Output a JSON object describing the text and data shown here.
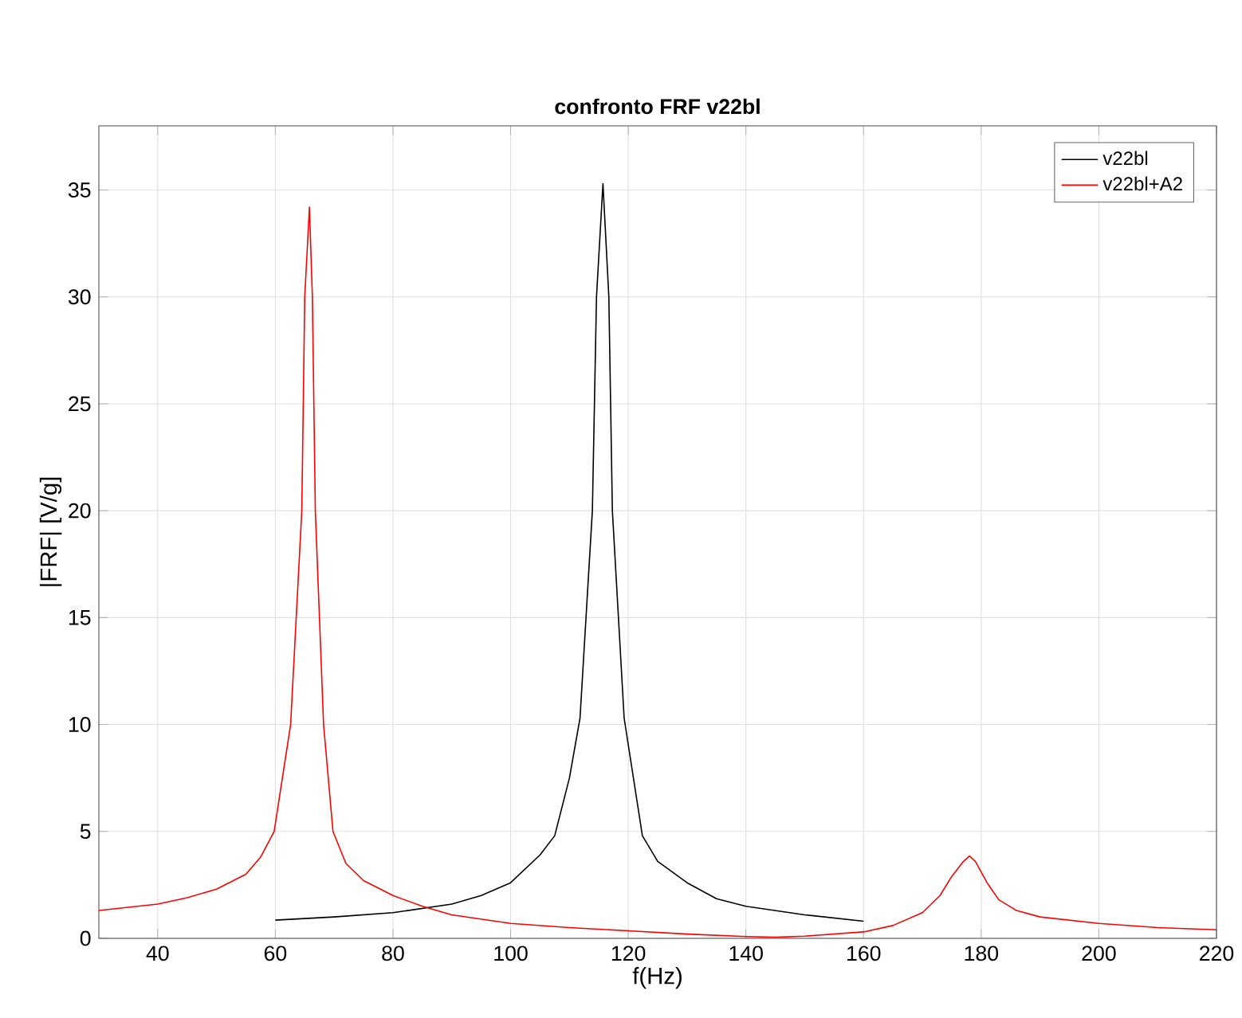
{
  "chart_data": {
    "type": "line",
    "title": "confronto FRF v22bl",
    "xlabel": "f(Hz)",
    "ylabel": "|FRF| [V/g]",
    "xlim": [
      30,
      220
    ],
    "xticks": [
      40,
      60,
      80,
      100,
      120,
      140,
      160,
      180,
      200,
      220
    ],
    "ylim": [
      0,
      38
    ],
    "yticks": [
      0,
      5,
      10,
      15,
      20,
      25,
      30,
      35
    ],
    "grid": true,
    "legend": "top right",
    "marker": "none",
    "line_style": "solid",
    "series": [
      {
        "name": "v22bl",
        "color": "#000000",
        "x": [
          60,
          70,
          80,
          90,
          95,
          100,
          105,
          107.5,
          110,
          111.8,
          113.9,
          114.6,
          115.7,
          116.7,
          117.3,
          119.3,
          122.4,
          125,
          130,
          135,
          140,
          150,
          160
        ],
        "values": [
          0.85,
          1.0,
          1.2,
          1.6,
          2.0,
          2.6,
          3.9,
          4.8,
          7.5,
          10.3,
          20,
          30,
          35.3,
          30,
          20,
          10.3,
          4.8,
          3.6,
          2.6,
          1.85,
          1.5,
          1.1,
          0.8
        ]
      },
      {
        "name": "v22bl+A2",
        "color": "#ff0000",
        "x": [
          30,
          40,
          45,
          50,
          55,
          57.5,
          59.8,
          62.6,
          64.5,
          65,
          65.8,
          66.3,
          66.8,
          68.2,
          69.8,
          72,
          75,
          80,
          85,
          90,
          100,
          110,
          120,
          130,
          140,
          145,
          150,
          160,
          165,
          170,
          173,
          175,
          177,
          178,
          179,
          181,
          183,
          186,
          190,
          200,
          210,
          220
        ],
        "values": [
          1.3,
          1.6,
          1.9,
          2.3,
          3.0,
          3.8,
          5,
          10,
          20,
          30,
          34.2,
          30,
          20,
          10,
          5,
          3.5,
          2.7,
          2.0,
          1.5,
          1.1,
          0.7,
          0.5,
          0.35,
          0.2,
          0.08,
          0.05,
          0.1,
          0.3,
          0.6,
          1.2,
          2.0,
          2.9,
          3.6,
          3.85,
          3.6,
          2.6,
          1.8,
          1.3,
          1.0,
          0.7,
          0.5,
          0.4
        ]
      }
    ]
  }
}
